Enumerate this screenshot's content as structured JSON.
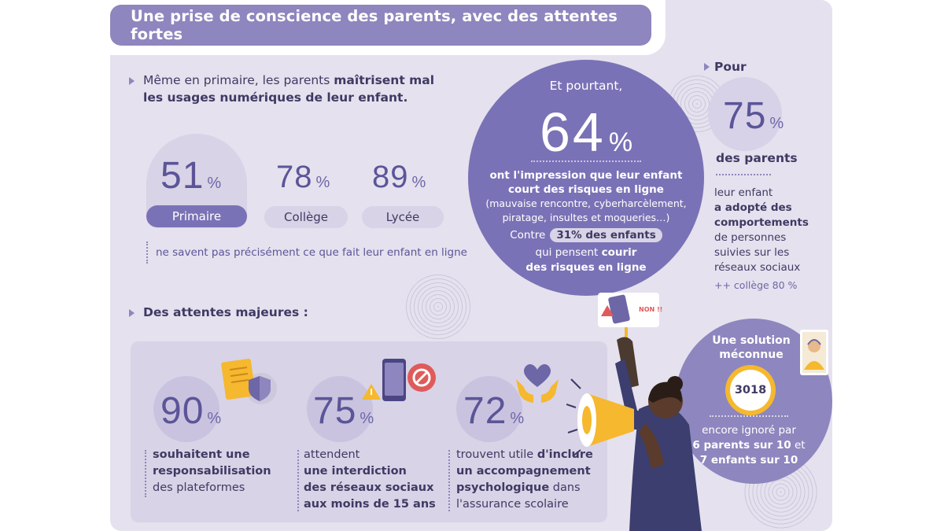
{
  "title": "Une prise de conscience des parents, avec des attentes fortes",
  "primaire": {
    "intro_normal": "Même en primaire, les parents",
    "intro_bold1": "maîtrisent mal",
    "intro_bold2": "les usages numériques de leur enfant.",
    "stats": [
      {
        "value": "51",
        "unit": "%",
        "label": "Primaire"
      },
      {
        "value": "78",
        "unit": "%",
        "label": "Collège"
      },
      {
        "value": "89",
        "unit": "%",
        "label": "Lycée"
      }
    ],
    "note": "ne savent pas précisément ce que fait leur enfant en ligne"
  },
  "risk": {
    "lead": "Et pourtant,",
    "value": "64",
    "unit": "%",
    "line1": "ont l'impression que leur enfant",
    "line2": "court des risques en ligne",
    "line3": "(mauvaise rencontre, cyberharcèlement,",
    "line4": "piratage, insultes et moqueries…)",
    "contre": "Contre",
    "badge": "31% des enfants",
    "line5_normal": "qui pensent",
    "line5_bold": "courir",
    "line6": "des risques en ligne"
  },
  "pour": {
    "lead": "Pour",
    "value": "75",
    "unit": "%",
    "parents": "des parents",
    "l1": "leur enfant",
    "l2": "a adopté des",
    "l3": "comportements",
    "l4": "de personnes",
    "l5": "suivies sur les",
    "l6": "réseaux sociaux",
    "extra": "++ collège 80 %"
  },
  "sign": {
    "text": "NON !!"
  },
  "attentes": {
    "heading": "Des attentes majeures :",
    "items": [
      {
        "value": "90",
        "unit": "%",
        "l1_bold": "souhaitent une",
        "l2_bold": "responsabilisation",
        "l3": "des plateformes"
      },
      {
        "value": "75",
        "unit": "%",
        "l1": "attendent",
        "l2_bold": "une interdiction",
        "l3_bold": "des réseaux sociaux",
        "l4_bold": "aux moins de 15 ans"
      },
      {
        "value": "72",
        "unit": "%",
        "l1": "trouvent utile",
        "l1_bold": "d'inclure",
        "l2_bold": "un accompagnement",
        "l3_bold": "psychologique",
        "l3": "dans",
        "l4": "l'assurance scolaire"
      }
    ]
  },
  "solution": {
    "title1": "Une solution",
    "title2": "méconnue",
    "number": "3018",
    "line1": "encore ignoré par",
    "line2": "6 parents sur 10",
    "line2b": "et",
    "line3": "7 enfants sur 10"
  },
  "colors": {
    "accent": "#8e86be",
    "dark_purple": "#7a72b6",
    "text": "#3f3a63",
    "yellow": "#f5b82e",
    "red": "#e05a5a"
  }
}
